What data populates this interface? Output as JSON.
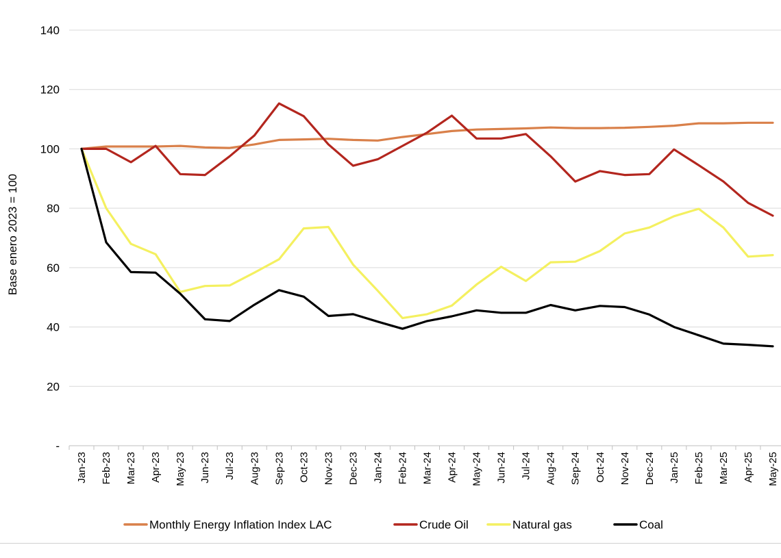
{
  "chart_data": {
    "type": "line",
    "title": "",
    "xlabel": "",
    "ylabel": "Base enero 2023 = 100",
    "ylim": [
      0,
      140
    ],
    "yticks": [
      {
        "value": 0,
        "label": "-"
      },
      {
        "value": 20,
        "label": "20"
      },
      {
        "value": 40,
        "label": "40"
      },
      {
        "value": 60,
        "label": "60"
      },
      {
        "value": 80,
        "label": "80"
      },
      {
        "value": 100,
        "label": "100"
      },
      {
        "value": 120,
        "label": "120"
      },
      {
        "value": 140,
        "label": "140"
      }
    ],
    "grid": "horizontal",
    "legend_position": "bottom",
    "categories": [
      "Jan-23",
      "Feb-23",
      "Mar-23",
      "Apr-23",
      "May-23",
      "Jun-23",
      "Jul-23",
      "Aug-23",
      "Sep-23",
      "Oct-23",
      "Nov-23",
      "Dec-23",
      "Jan-24",
      "Feb-24",
      "Mar-24",
      "Apr-24",
      "May-24",
      "Jun-24",
      "Jul-24",
      "Aug-24",
      "Sep-24",
      "Oct-24",
      "Nov-24",
      "Dec-24",
      "Jan-25",
      "Feb-25",
      "Mar-25",
      "Apr-25",
      "May-25"
    ],
    "series": [
      {
        "name": "Monthly Energy Inflation Index LAC",
        "color": "#d9804a",
        "values": [
          100,
          100.8,
          100.8,
          100.8,
          101,
          100.5,
          100.3,
          101.5,
          103,
          103.2,
          103.4,
          103,
          102.8,
          104,
          105,
          106,
          106.5,
          106.7,
          106.9,
          107.2,
          107,
          107,
          107.1,
          107.4,
          107.8,
          108.6,
          108.6,
          108.8,
          108.8
        ]
      },
      {
        "name": "Crude Oil",
        "color": "#b3261e",
        "values": [
          100,
          100,
          95.5,
          101,
          91.5,
          91.2,
          97.5,
          104.5,
          115.3,
          111,
          101.5,
          94.3,
          96.5,
          101,
          105.5,
          111.2,
          103.5,
          103.5,
          105,
          97.5,
          89,
          92.5,
          91.2,
          91.5,
          99.8,
          94.5,
          89,
          81.8,
          77.5
        ]
      },
      {
        "name": "Natural gas",
        "color": "#f4f060",
        "values": [
          100,
          80,
          68,
          64.5,
          51.8,
          53.8,
          54,
          58.3,
          62.8,
          73.2,
          73.7,
          61,
          52.2,
          43,
          44.3,
          47.2,
          54.3,
          60.3,
          55.5,
          61.8,
          62,
          65.6,
          71.5,
          73.5,
          77.3,
          79.8,
          73.5,
          63.7,
          64.2
        ]
      },
      {
        "name": "Coal",
        "color": "#000000",
        "values": [
          100,
          68.5,
          58.5,
          58.3,
          51.2,
          42.6,
          42,
          47.5,
          52.4,
          50.2,
          43.7,
          44.3,
          41.8,
          39.4,
          42,
          43.6,
          45.6,
          44.8,
          44.8,
          47.4,
          45.6,
          47.1,
          46.7,
          44.2,
          40,
          37.2,
          34.4,
          34,
          33.5
        ]
      }
    ]
  }
}
